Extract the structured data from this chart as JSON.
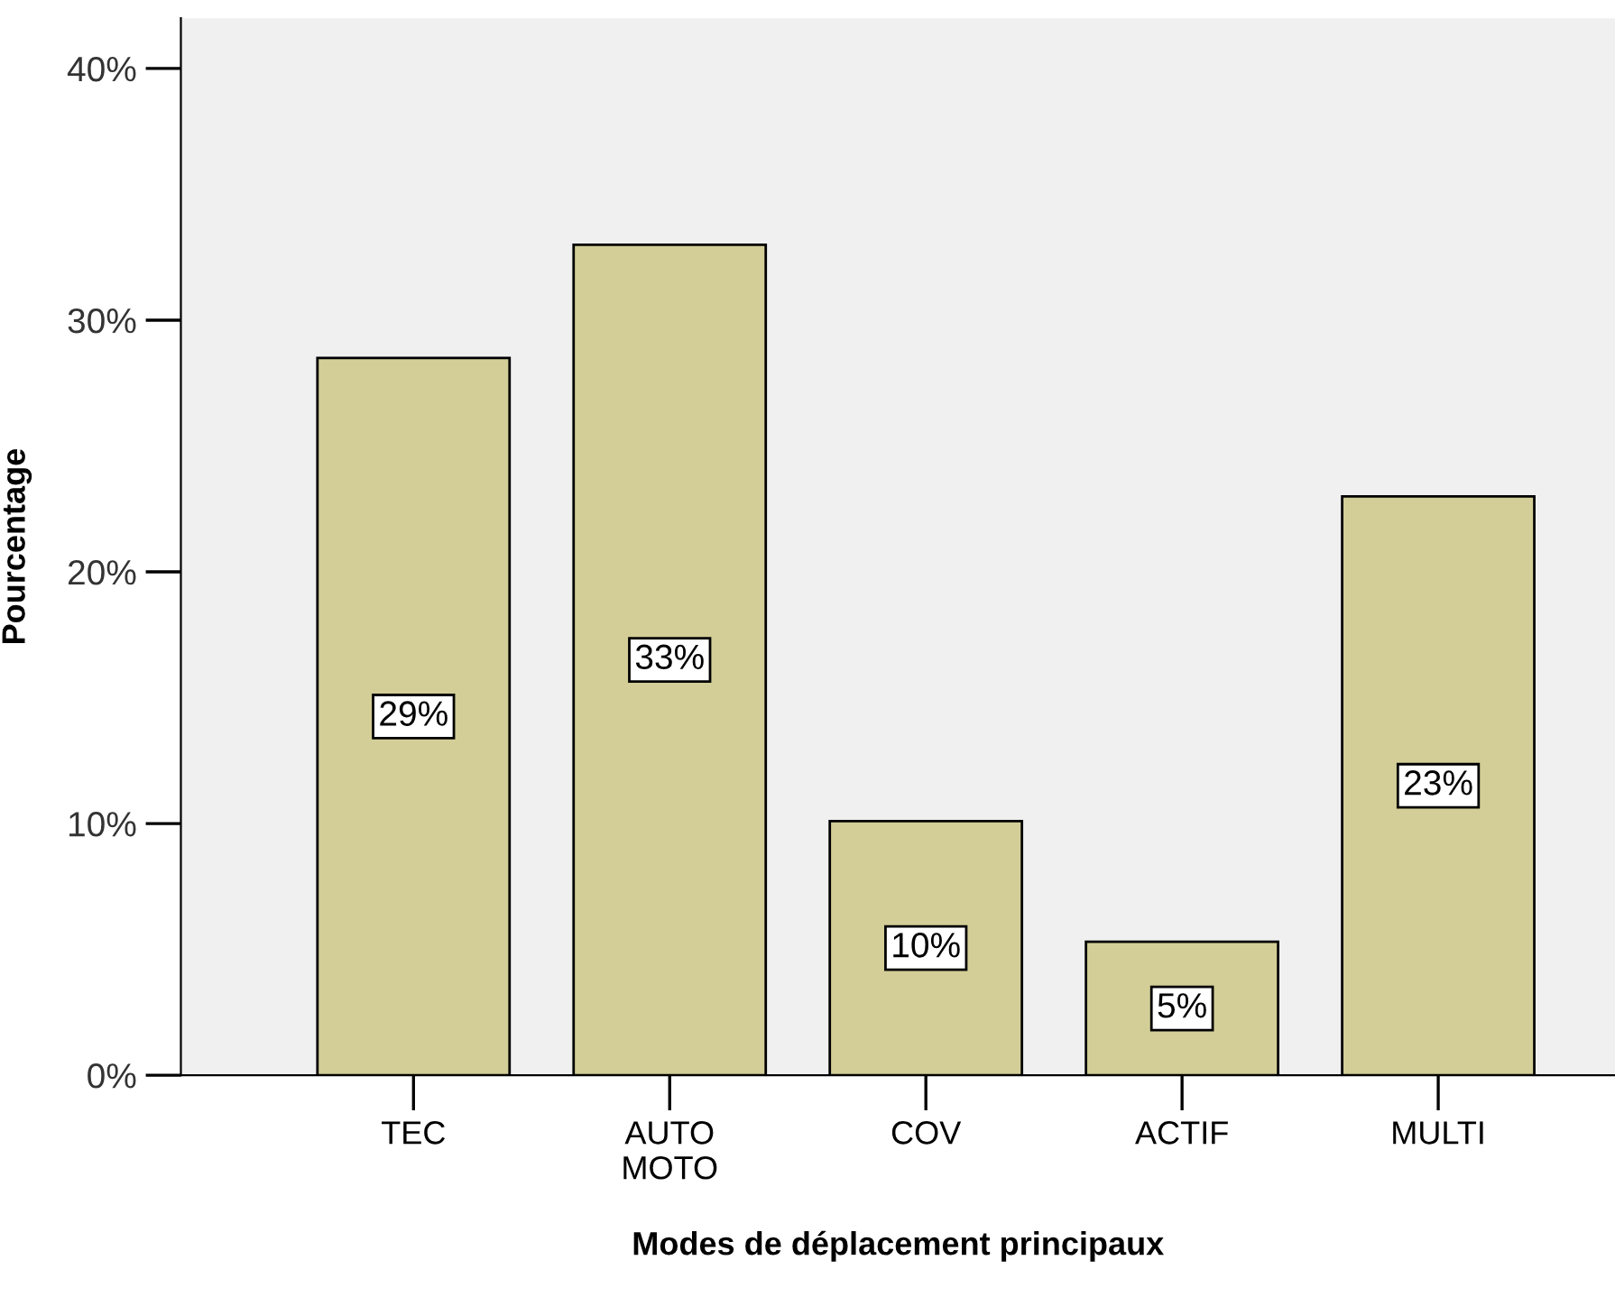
{
  "chart_data": {
    "type": "bar",
    "xlabel": "Modes de déplacement principaux",
    "ylabel": "Pourcentage",
    "categories": [
      "TEC",
      "AUTO\nMOTO",
      "COV",
      "ACTIF",
      "MULTI"
    ],
    "values": [
      28.5,
      33,
      10.1,
      5.3,
      23
    ],
    "value_labels": [
      "29%",
      "33%",
      "10%",
      "5%",
      "23%"
    ],
    "color": "#d3ce97",
    "ylim": [
      0,
      42
    ],
    "yticks": [
      {
        "value": 0,
        "label": "0%"
      },
      {
        "value": 10,
        "label": "10%"
      },
      {
        "value": 20,
        "label": "20%"
      },
      {
        "value": 30,
        "label": "30%"
      },
      {
        "value": 40,
        "label": "40%"
      }
    ],
    "grid": false,
    "legend": false
  }
}
